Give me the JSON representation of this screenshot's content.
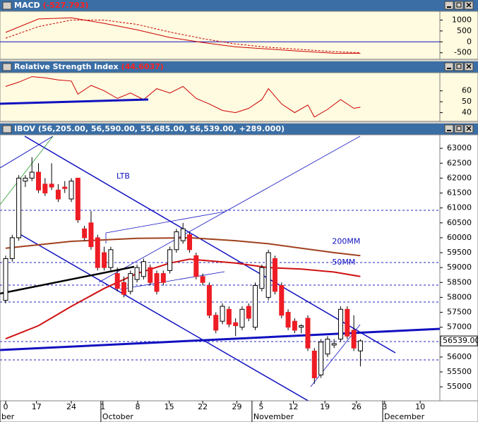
{
  "chart_data": [
    {
      "type": "line",
      "title": "MACD",
      "title_value": "(-527.793)",
      "xlim": [
        -0.86,
        66.1
      ],
      "ylim": [
        -800,
        1370
      ],
      "yticks": [
        1000,
        500,
        0,
        -500
      ],
      "series": [
        {
          "color": "#cc0000",
          "dash": false,
          "x": [
            0,
            5,
            10,
            15,
            20,
            25,
            30,
            35,
            40,
            45,
            50,
            54
          ],
          "values": [
            433,
            1050,
            1100,
            850,
            550,
            200,
            -30,
            -230,
            -330,
            -430,
            -520,
            -528
          ]
        },
        {
          "color": "#cc0000",
          "dash": true,
          "x": [
            0,
            5,
            10,
            15,
            20,
            25,
            30,
            35,
            40,
            45,
            50,
            54
          ],
          "values": [
            167,
            700,
            1000,
            1000,
            800,
            450,
            150,
            -100,
            -250,
            -350,
            -450,
            -500
          ]
        }
      ]
    },
    {
      "type": "line",
      "title": "Relative Strength Index",
      "title_value": "(44.6037)",
      "xlim": [
        -0.86,
        66.1
      ],
      "ylim": [
        32,
        76
      ],
      "yticks": [
        60,
        50,
        40
      ],
      "series": [
        {
          "color": "#cc0000",
          "dash": false,
          "x": [
            0,
            2,
            4,
            6,
            8,
            10,
            11,
            13,
            15,
            17,
            19,
            21,
            23,
            25,
            27,
            29,
            31,
            33,
            35,
            37,
            39,
            40,
            42,
            44,
            46,
            47,
            49,
            51,
            53,
            54
          ],
          "values": [
            64,
            68,
            73,
            72,
            70,
            69,
            57,
            65,
            60,
            53,
            58,
            52,
            62,
            58,
            64,
            53,
            48,
            42,
            40,
            44,
            52,
            62,
            48,
            40,
            47,
            36,
            43,
            52,
            44,
            45
          ]
        }
      ]
    },
    {
      "type": "candlestick",
      "title": "IBOV (56,205.00, 56,590.00, 55,685.00, 56,539.00, +289.000)",
      "xlim": [
        -0.86,
        66.1
      ],
      "ylim": [
        54530,
        63430
      ],
      "yticks": [
        55000,
        55500,
        56000,
        56500,
        57000,
        57500,
        58000,
        58500,
        59000,
        59500,
        60000,
        60500,
        61000,
        61500,
        62000,
        62500,
        63000
      ],
      "xticks": [
        {
          "value": 0,
          "label": "0"
        },
        {
          "value": 4.7,
          "label": "17"
        },
        {
          "value": 10,
          "label": "24"
        },
        {
          "value": 14.8,
          "label": "1"
        },
        {
          "value": 20.1,
          "label": "8"
        },
        {
          "value": 24.9,
          "label": "15"
        },
        {
          "value": 30,
          "label": "22"
        },
        {
          "value": 35.2,
          "label": "29"
        },
        {
          "value": 38.9,
          "label": "5"
        },
        {
          "value": 43.8,
          "label": "12"
        },
        {
          "value": 48.6,
          "label": "19"
        },
        {
          "value": 53.4,
          "label": "26"
        },
        {
          "value": 57.7,
          "label": "3"
        },
        {
          "value": 63.1,
          "label": "10"
        }
      ],
      "month_labels": [
        {
          "value": -0.86,
          "label": "ber"
        },
        {
          "value": 14.5,
          "label": "October"
        },
        {
          "value": 37.5,
          "label": "November"
        },
        {
          "value": 57.4,
          "label": "December"
        }
      ],
      "up_color": "#ffffff",
      "down_color": "#ee1c24",
      "open": [
        57900,
        59300,
        60000,
        61900,
        62000,
        62200,
        61800,
        61800,
        61600,
        61700,
        61300,
        62000,
        60300,
        60500,
        60000,
        59500,
        59000,
        58800,
        58500,
        58200,
        58600,
        58700,
        59000,
        58800,
        58800,
        58900,
        59600,
        59900,
        60100,
        59400,
        58700,
        58400,
        57400,
        57200,
        57600,
        57150,
        57000,
        57700,
        57000,
        58300,
        58000,
        59300,
        58400,
        57500,
        57200,
        57000,
        57300,
        56200,
        55400,
        56100,
        56400,
        56600,
        57600,
        56900,
        56205
      ],
      "high": [
        59400,
        60100,
        62100,
        62100,
        62700,
        62500,
        62000,
        62500,
        61800,
        61900,
        62000,
        62000,
        60400,
        60900,
        60100,
        59700,
        59700,
        59000,
        58700,
        58900,
        59100,
        59300,
        59100,
        58900,
        58900,
        59700,
        60300,
        60500,
        60200,
        59500,
        58800,
        58500,
        57500,
        57800,
        57700,
        57300,
        57700,
        57800,
        58500,
        59100,
        59600,
        59400,
        58500,
        57600,
        57300,
        57100,
        57400,
        56300,
        56600,
        56700,
        56600,
        57700,
        57700,
        57400,
        56590
      ],
      "low": [
        57800,
        59200,
        59900,
        61700,
        61900,
        61500,
        61400,
        61600,
        61200,
        61500,
        61200,
        60500,
        59900,
        59600,
        58900,
        58900,
        58900,
        58200,
        58000,
        58100,
        58500,
        58600,
        58400,
        58100,
        58400,
        58800,
        59500,
        59800,
        59500,
        58600,
        58400,
        57300,
        56800,
        57100,
        57000,
        56700,
        56900,
        57200,
        56900,
        58200,
        57900,
        58100,
        57300,
        56900,
        56800,
        56800,
        56200,
        55100,
        55300,
        56000,
        56300,
        56500,
        56600,
        56200,
        55685
      ],
      "close": [
        59300,
        60000,
        62000,
        62000,
        62200,
        61600,
        61500,
        61700,
        61300,
        61650,
        61900,
        60600,
        60000,
        59700,
        59000,
        59000,
        59600,
        58300,
        58100,
        58800,
        59000,
        59200,
        58500,
        58200,
        58500,
        59600,
        60200,
        60300,
        59600,
        58700,
        58500,
        57400,
        56900,
        57700,
        57100,
        57050,
        57600,
        57300,
        58400,
        59000,
        59500,
        58200,
        57400,
        57000,
        56900,
        57050,
        56300,
        55300,
        56500,
        56600,
        56450,
        57600,
        56700,
        56300,
        56539
      ],
      "last_label": "56539.00",
      "annotation": "LTB",
      "series": [
        {
          "name": "200MM",
          "color": "#a0411e",
          "x": [
            0,
            10,
            20,
            28,
            35,
            40,
            45,
            50,
            54
          ],
          "values": [
            59650,
            59880,
            59980,
            60000,
            59900,
            59800,
            59650,
            59500,
            59400
          ]
        },
        {
          "name": "50MM",
          "color": "#d01010",
          "x": [
            0,
            5,
            10,
            15,
            20,
            25,
            28,
            35,
            40,
            45,
            50,
            54
          ],
          "values": [
            56610,
            57050,
            57700,
            58300,
            58800,
            59150,
            59280,
            59150,
            59000,
            58950,
            58850,
            58700
          ]
        }
      ]
    }
  ]
}
